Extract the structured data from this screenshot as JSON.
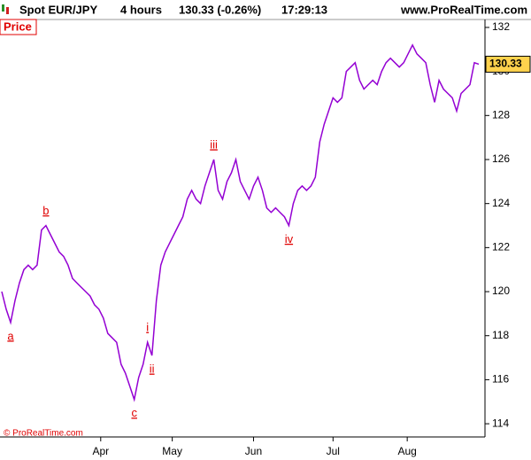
{
  "header": {
    "symbol": "Spot EUR/JPY",
    "period": "4 hours",
    "quote": "130.33 (-0.26%)",
    "time": "17:29:13",
    "site": "www.ProRealTime.com"
  },
  "footer": "© ProRealTime.com",
  "chart_data": {
    "type": "line",
    "title": "Price",
    "series": [
      {
        "name": "Price",
        "color": "#9400d3",
        "values": [
          120.0,
          119.2,
          118.6,
          119.6,
          120.4,
          121.0,
          121.2,
          121.0,
          121.2,
          122.8,
          123.0,
          122.6,
          122.2,
          121.8,
          121.6,
          121.2,
          120.6,
          120.4,
          120.2,
          120.0,
          119.8,
          119.4,
          119.2,
          118.8,
          118.1,
          117.9,
          117.7,
          116.7,
          116.3,
          115.7,
          115.1,
          116.1,
          116.7,
          117.7,
          117.1,
          119.6,
          121.2,
          121.8,
          122.2,
          122.6,
          123.0,
          123.4,
          124.2,
          124.6,
          124.2,
          124.0,
          124.8,
          125.4,
          126.0,
          124.6,
          124.2,
          125.0,
          125.4,
          126.0,
          125.0,
          124.6,
          124.2,
          124.8,
          125.2,
          124.6,
          123.8,
          123.6,
          123.8,
          123.6,
          123.4,
          123.0,
          124.0,
          124.6,
          124.8,
          124.6,
          124.8,
          125.2,
          126.8,
          127.6,
          128.2,
          128.8,
          128.6,
          128.8,
          130.0,
          130.2,
          130.4,
          129.6,
          129.2,
          129.4,
          129.6,
          129.4,
          130.0,
          130.4,
          130.6,
          130.4,
          130.2,
          130.4,
          130.8,
          131.2,
          130.8,
          130.6,
          130.4,
          129.4,
          128.6,
          129.6,
          129.2,
          129.0,
          128.8,
          128.2,
          129.0,
          129.2,
          129.4,
          130.4,
          130.33
        ]
      }
    ],
    "xlim": [
      0,
      108
    ],
    "xticks": [
      {
        "value": 22.4,
        "label": "Apr"
      },
      {
        "value": 38.6,
        "label": "May"
      },
      {
        "value": 57,
        "label": "Jun"
      },
      {
        "value": 75,
        "label": "Jul"
      },
      {
        "value": 91.8,
        "label": "Aug"
      }
    ],
    "ylim": [
      113.4,
      132.36
    ],
    "yticks": [
      114,
      116,
      118,
      120,
      122,
      124,
      126,
      128,
      130,
      132
    ],
    "annotations": [
      {
        "text": "a",
        "point": 2,
        "side": "below"
      },
      {
        "text": "b",
        "point": 10,
        "side": "above"
      },
      {
        "text": "c",
        "point": 30,
        "side": "below"
      },
      {
        "text": "i",
        "point": 33,
        "side": "above"
      },
      {
        "text": "ii",
        "point": 34,
        "side": "below"
      },
      {
        "text": "iii",
        "point": 48,
        "side": "above"
      },
      {
        "text": "iv",
        "point": 65,
        "side": "below"
      }
    ]
  }
}
